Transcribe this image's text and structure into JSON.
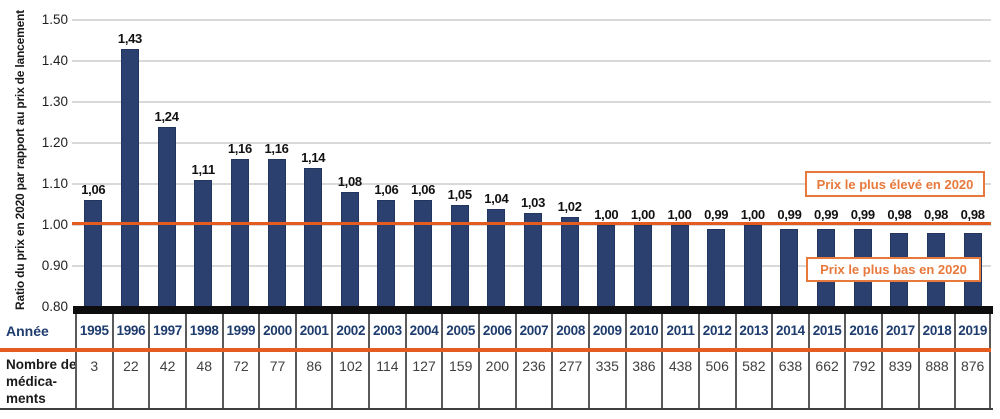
{
  "chart_data": {
    "type": "bar",
    "title": "",
    "ylabel": "Ratio du prix en 2020 par rapport au prix de lancement",
    "ylim": [
      0.8,
      1.5
    ],
    "grid": true,
    "yticks": [
      {
        "label": "1.50",
        "value": 1.5
      },
      {
        "label": "1.40",
        "value": 1.4
      },
      {
        "label": "1.30",
        "value": 1.3
      },
      {
        "label": "1.20",
        "value": 1.2
      },
      {
        "label": "1.10",
        "value": 1.1
      },
      {
        "label": "1.00",
        "value": 1.0
      },
      {
        "label": "0.90",
        "value": 0.9
      },
      {
        "label": "0.80",
        "value": 0.8
      }
    ],
    "baseline_value": 1.0,
    "categories": [
      "1995",
      "1996",
      "1997",
      "1998",
      "1999",
      "2000",
      "2001",
      "2002",
      "2003",
      "2004",
      "2005",
      "2006",
      "2007",
      "2008",
      "2009",
      "2010",
      "2011",
      "2012",
      "2013",
      "2014",
      "2015",
      "2016",
      "2017",
      "2018",
      "2019"
    ],
    "series": [
      {
        "name": "Ratio du prix en 2020 par rapport au prix de lancement",
        "values": [
          1.06,
          1.43,
          1.24,
          1.11,
          1.16,
          1.16,
          1.14,
          1.08,
          1.06,
          1.06,
          1.05,
          1.04,
          1.03,
          1.02,
          1.0,
          1.0,
          1.0,
          0.99,
          1.0,
          0.99,
          0.99,
          0.99,
          0.98,
          0.98,
          0.98
        ],
        "labels": [
          "1,06",
          "1,43",
          "1,24",
          "1,11",
          "1,16",
          "1,16",
          "1,14",
          "1,08",
          "1,06",
          "1,06",
          "1,05",
          "1,04",
          "1,03",
          "1,02",
          "1,00",
          "1,00",
          "1,00",
          "0,99",
          "1,00",
          "0,99",
          "0,99",
          "0,99",
          "0,98",
          "0,98",
          "0,98"
        ]
      },
      {
        "name": "Nombre de médicaments",
        "values": [
          3,
          22,
          42,
          48,
          72,
          77,
          86,
          102,
          114,
          127,
          159,
          200,
          236,
          277,
          335,
          386,
          438,
          506,
          582,
          638,
          662,
          792,
          839,
          888,
          876
        ]
      }
    ],
    "annotations": [
      {
        "text": "Prix le plus élevé en 2020"
      },
      {
        "text": "Prix le plus bas en 2020"
      }
    ],
    "legend": "none",
    "colors": {
      "bar": "#2b406e",
      "baseline_orange": "#e55c20",
      "callout_orange": "#e8793c",
      "year_text_navy": "#1e3c6e",
      "gridline_gray": "#d9d9d9",
      "axis_black": "#0d0d0d",
      "cell_border_gray": "#5a5a5a"
    }
  },
  "table": {
    "row1_label": "Année",
    "row2_label_lines": [
      "Nombre de",
      "médica-",
      "ments"
    ]
  }
}
